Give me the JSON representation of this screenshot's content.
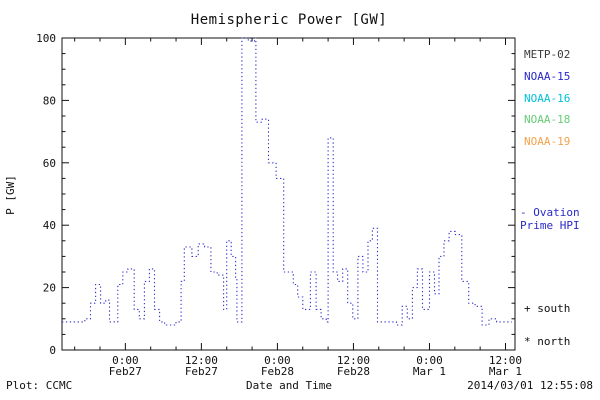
{
  "title": "Hemispheric Power [GW]",
  "ylabel": "P [GW]",
  "xlabel": "Date and Time",
  "footer": {
    "plot_credit": "Plot: CCMC",
    "timestamp": "2014/03/01 12:55:08"
  },
  "legend": {
    "satellites": [
      {
        "label": "METP-02",
        "color": "#3a3a3a"
      },
      {
        "label": "NOAA-15",
        "color": "#2929cc"
      },
      {
        "label": "NOAA-16",
        "color": "#00bfd8"
      },
      {
        "label": "NOAA-18",
        "color": "#66cc77"
      },
      {
        "label": "NOAA-19",
        "color": "#f2a24c"
      }
    ],
    "model_line1": "- Ovation",
    "model_line2": "Prime HPI",
    "model_color": "#2929cc",
    "south_marker": "+ south",
    "north_marker": "* north"
  },
  "chart_data": {
    "type": "line",
    "style": "dotted-step",
    "title": "Hemispheric Power [GW]",
    "xlabel": "Date and Time",
    "ylabel": "P [GW]",
    "ylim": [
      0,
      100
    ],
    "yticks": [
      0,
      20,
      40,
      60,
      80,
      100
    ],
    "y_minor_step": 5,
    "xlim_hours": [
      0,
      71.5
    ],
    "x_start": "Feb 26 14:00",
    "xticks": [
      {
        "hour": 10,
        "time": "0:00",
        "date": "Feb27"
      },
      {
        "hour": 22,
        "time": "12:00",
        "date": "Feb27"
      },
      {
        "hour": 34,
        "time": "0:00",
        "date": "Feb28"
      },
      {
        "hour": 46,
        "time": "12:00",
        "date": "Feb28"
      },
      {
        "hour": 58,
        "time": "0:00",
        "date": "Mar 1"
      },
      {
        "hour": 70,
        "time": "12:00",
        "date": "Mar 1"
      }
    ],
    "grid": false,
    "legend_position": "right",
    "line_color": "#3333cc",
    "series": [
      {
        "name": "Ovation Prime HPI",
        "units": "GW",
        "points": [
          [
            0,
            9
          ],
          [
            3.6,
            10
          ],
          [
            4.5,
            15
          ],
          [
            5.3,
            21
          ],
          [
            6.1,
            15
          ],
          [
            6.9,
            16
          ],
          [
            7.5,
            9
          ],
          [
            8.8,
            21
          ],
          [
            9.6,
            25
          ],
          [
            10.4,
            26
          ],
          [
            11.4,
            13
          ],
          [
            12.2,
            10
          ],
          [
            13,
            22
          ],
          [
            13.8,
            26
          ],
          [
            14.6,
            13
          ],
          [
            15.4,
            9
          ],
          [
            16.2,
            8
          ],
          [
            18,
            9
          ],
          [
            18.8,
            22
          ],
          [
            19.3,
            33
          ],
          [
            20.5,
            30
          ],
          [
            21.5,
            34
          ],
          [
            22.5,
            33
          ],
          [
            23.5,
            25
          ],
          [
            24.5,
            24
          ],
          [
            25.5,
            13
          ],
          [
            26,
            35
          ],
          [
            26.7,
            30
          ],
          [
            27.4,
            23
          ],
          [
            27.6,
            9
          ],
          [
            28.4,
            100
          ],
          [
            29.4,
            99
          ],
          [
            30.4,
            100
          ],
          [
            30.6,
            73
          ],
          [
            31.6,
            74
          ],
          [
            32.6,
            60
          ],
          [
            33.8,
            55
          ],
          [
            35,
            25
          ],
          [
            36.5,
            21
          ],
          [
            37.2,
            17
          ],
          [
            38,
            13
          ],
          [
            39.2,
            25
          ],
          [
            40.1,
            13
          ],
          [
            40.9,
            10
          ],
          [
            41.7,
            9
          ],
          [
            42,
            68
          ],
          [
            42.8,
            25
          ],
          [
            43.5,
            22
          ],
          [
            44.3,
            26
          ],
          [
            45.1,
            15
          ],
          [
            45.9,
            10
          ],
          [
            46.7,
            30
          ],
          [
            47.5,
            25
          ],
          [
            48.3,
            35
          ],
          [
            49,
            39
          ],
          [
            49.8,
            9
          ],
          [
            52,
            9
          ],
          [
            52.8,
            8
          ],
          [
            53.7,
            14
          ],
          [
            54.5,
            10
          ],
          [
            55.3,
            20
          ],
          [
            56.1,
            26
          ],
          [
            56.9,
            13
          ],
          [
            58,
            25
          ],
          [
            58.8,
            18
          ],
          [
            59.5,
            30
          ],
          [
            60.3,
            35
          ],
          [
            61.1,
            38
          ],
          [
            62.1,
            37
          ],
          [
            63.1,
            22
          ],
          [
            64.2,
            15
          ],
          [
            65.2,
            14
          ],
          [
            66.3,
            8
          ],
          [
            67.4,
            10
          ],
          [
            68.6,
            9
          ],
          [
            71,
            9
          ]
        ]
      }
    ]
  }
}
